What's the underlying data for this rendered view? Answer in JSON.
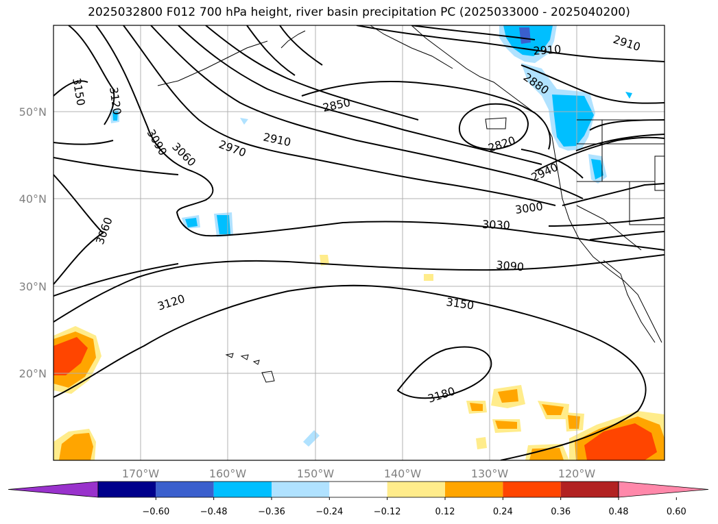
{
  "title": "2025032800 F012 700 hPa height, river basin precipitation PC (2025033000 - 2025040200)",
  "map": {
    "lat_labels": [
      "50°N",
      "40°N",
      "30°N",
      "20°N"
    ],
    "lon_labels": [
      "170°W",
      "160°W",
      "150°W",
      "140°W",
      "130°W",
      "120°W"
    ]
  },
  "contour_labels": [
    {
      "text": "3150"
    },
    {
      "text": "3120"
    },
    {
      "text": "3090"
    },
    {
      "text": "3060"
    },
    {
      "text": "2970"
    },
    {
      "text": "2910"
    },
    {
      "text": "2850"
    },
    {
      "text": "2820"
    },
    {
      "text": "2910"
    },
    {
      "text": "2880"
    },
    {
      "text": "2910"
    },
    {
      "text": "2940"
    },
    {
      "text": "3000"
    },
    {
      "text": "3030"
    },
    {
      "text": "3060"
    },
    {
      "text": "3090"
    },
    {
      "text": "3120"
    },
    {
      "text": "3150"
    },
    {
      "text": "3180"
    }
  ],
  "colorbar": {
    "ticks": [
      "−0.60",
      "−0.48",
      "−0.36",
      "−0.24",
      "−0.12",
      "0.12",
      "0.24",
      "0.36",
      "0.48",
      "0.60"
    ],
    "colors": [
      "#9932CC",
      "#00008B",
      "#3A5FCD",
      "#00BFFF",
      "#B0E2FF",
      "#FFFFFF",
      "#FFEC8B",
      "#FFA500",
      "#FF4500",
      "#B22222",
      "#FF88AA"
    ]
  }
}
